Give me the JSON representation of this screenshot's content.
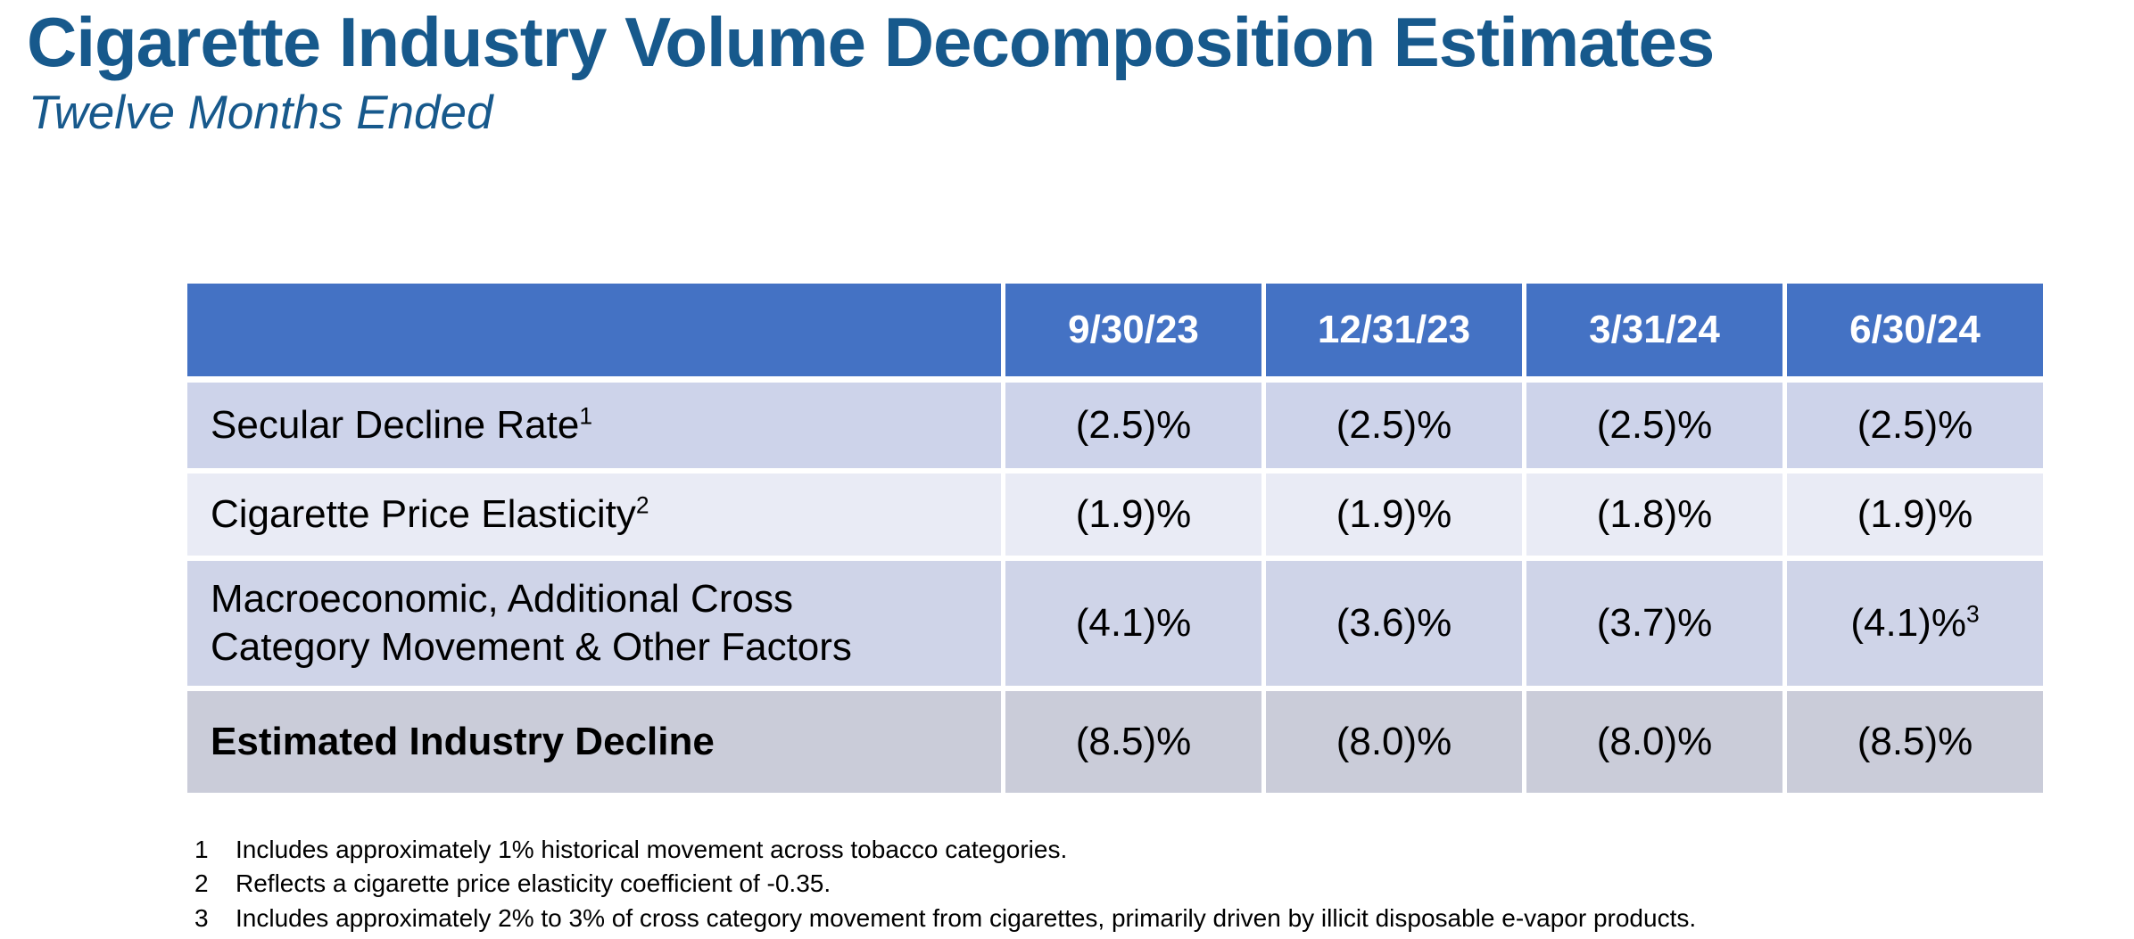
{
  "page": {
    "title": "Cigarette Industry Volume Decomposition Estimates",
    "subtitle": "Twelve Months Ended"
  },
  "colors": {
    "title_blue": "#17598C",
    "header_blue": "#4472C4",
    "row_lavender": "#CDD3EA",
    "row_light": "#E9EBF5",
    "row_gray": "#CACCD9"
  },
  "table": {
    "columns": [
      "9/30/23",
      "12/31/23",
      "3/31/24",
      "6/30/24"
    ],
    "rows": [
      {
        "label": "Secular Decline Rate",
        "sup": "1",
        "values": [
          "(2.5)%",
          "(2.5)%",
          "(2.5)%",
          "(2.5)%"
        ]
      },
      {
        "label": "Cigarette Price Elasticity",
        "sup": "2",
        "values": [
          "(1.9)%",
          "(1.9)%",
          "(1.8)%",
          "(1.9)%"
        ]
      },
      {
        "label": "Macroeconomic, Additional Cross Category Movement & Other Factors",
        "values": [
          "(4.1)%",
          "(3.6)%",
          "(3.7)%",
          "(4.1)%"
        ],
        "value_sup": "3"
      },
      {
        "label": "Estimated Industry Decline",
        "values": [
          "(8.5)%",
          "(8.0)%",
          "(8.0)%",
          "(8.5)%"
        ]
      }
    ]
  },
  "footnotes": [
    {
      "num": "1",
      "text": "Includes approximately 1% historical movement across tobacco categories."
    },
    {
      "num": "2",
      "text": "Reflects a cigarette price elasticity coefficient of -0.35."
    },
    {
      "num": "3",
      "text": "Includes approximately 2% to 3% of cross category movement from cigarettes, primarily driven by illicit disposable e-vapor products."
    }
  ]
}
